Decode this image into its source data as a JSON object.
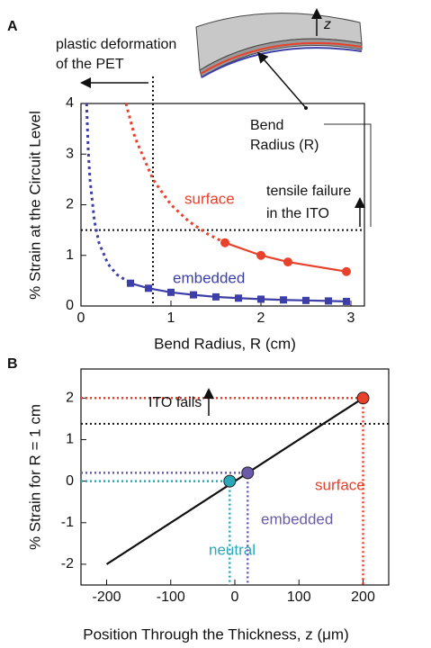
{
  "panel_labels": [
    "A",
    "B"
  ],
  "diagram_labels": {
    "z": "z"
  },
  "chart_data": [
    {
      "type": "line",
      "x_label": "Bend Radius, R (cm)",
      "y_label": "% Strain at the Circuit Level",
      "xlim": [
        0,
        3.15
      ],
      "ylim": [
        0,
        4
      ],
      "xticks": [
        0,
        1,
        2,
        3
      ],
      "yticks": [
        0,
        1,
        2,
        3,
        4
      ],
      "series": [
        {
          "color": "#e8412c",
          "style": "dotted",
          "x": [
            0.5,
            0.6,
            0.8,
            1.0,
            1.2,
            1.4,
            1.6
          ],
          "values": [
            4,
            3.33,
            2.5,
            2,
            1.67,
            1.43,
            1.25
          ]
        },
        {
          "name": "surface",
          "color": "#e8412c",
          "style": "solid",
          "marker": "circle",
          "x": [
            1.6,
            2.0,
            2.3,
            2.95
          ],
          "values": [
            1.25,
            1.0,
            0.87,
            0.68
          ]
        },
        {
          "color": "#3d3fa8",
          "style": "dotted",
          "x": [
            0.0625,
            0.08,
            0.1,
            0.15,
            0.2,
            0.3,
            0.4,
            0.55
          ],
          "values": [
            4,
            3.1,
            2.5,
            1.67,
            1.25,
            0.83,
            0.62,
            0.45
          ]
        },
        {
          "name": "embedded",
          "color": "#3d3fa8",
          "style": "solid",
          "marker": "square",
          "x": [
            0.55,
            0.75,
            1.0,
            1.25,
            1.5,
            1.75,
            2.0,
            2.25,
            2.5,
            2.75,
            2.95
          ],
          "values": [
            0.45,
            0.35,
            0.27,
            0.22,
            0.18,
            0.155,
            0.135,
            0.12,
            0.11,
            0.1,
            0.09
          ]
        }
      ],
      "hlines": [
        1.5
      ],
      "vlines": [
        0.8
      ],
      "annotations": [
        "plastic deformation",
        "of the PET",
        "tensile failure",
        "in the ITO",
        "Bend",
        "Radius (R)"
      ]
    },
    {
      "type": "line",
      "x_label": "Position Through the Thickness, z (μm)",
      "y_label": "% Strain for R = 1 cm",
      "xlim": [
        -240,
        240
      ],
      "ylim": [
        -2.5,
        2.7
      ],
      "xticks": [
        -200,
        -100,
        0,
        100,
        200
      ],
      "yticks": [
        -2,
        -1,
        0,
        1,
        2
      ],
      "series": [
        {
          "color": "#111111",
          "style": "solid",
          "x": [
            -200,
            200
          ],
          "values": [
            -2,
            2
          ]
        },
        {
          "name": "neutral",
          "color": "#2aa7b8",
          "style": "none",
          "marker": "circle",
          "guides": true,
          "x": [
            -8
          ],
          "values": [
            0
          ]
        },
        {
          "name": "embedded",
          "color": "#6a5aa8",
          "style": "none",
          "marker": "circle",
          "guides": true,
          "x": [
            20
          ],
          "values": [
            0.2
          ]
        },
        {
          "name": "surface",
          "color": "#e8412c",
          "style": "none",
          "marker": "circle",
          "guides": true,
          "x": [
            200
          ],
          "values": [
            2
          ]
        }
      ],
      "hlines": [
        1.38
      ],
      "vlines": [],
      "annotations": [
        "ITO fails"
      ]
    }
  ]
}
